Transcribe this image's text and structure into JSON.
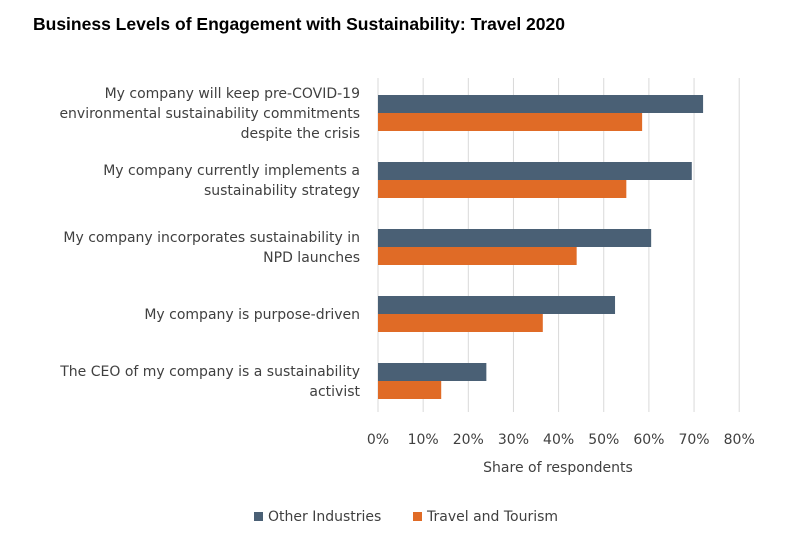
{
  "chart_data": {
    "type": "bar",
    "orientation": "horizontal",
    "title": "Business Levels of Engagement with Sustainability: Travel 2020",
    "xlabel": "Share of respondents",
    "ylabel": "",
    "xlim": [
      0,
      80
    ],
    "xticks": [
      "0%",
      "10%",
      "20%",
      "30%",
      "40%",
      "50%",
      "60%",
      "70%",
      "80%"
    ],
    "grid": "vertical",
    "legend": "bottom-center",
    "categories": [
      [
        "My company will keep pre-COVID-19",
        "environmental sustainability commitments",
        "despite the crisis"
      ],
      [
        "My company currently implements a",
        "sustainability strategy"
      ],
      [
        "My company incorporates sustainability in",
        "NPD launches"
      ],
      [
        "My company is purpose-driven"
      ],
      [
        "The CEO of my company is a sustainability",
        "activist"
      ]
    ],
    "series": [
      {
        "name": "Other Industries",
        "color": "#4a6075",
        "values": [
          72,
          69.5,
          60.5,
          52.5,
          24
        ]
      },
      {
        "name": "Travel and Tourism",
        "color": "#e06b26",
        "values": [
          58.5,
          55,
          44,
          36.5,
          14
        ]
      }
    ]
  }
}
